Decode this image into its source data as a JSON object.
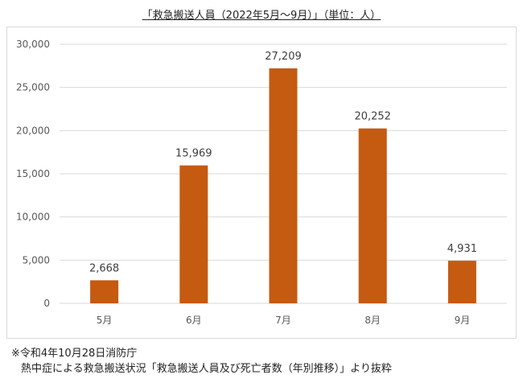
{
  "chart_title": "「救急搬送人員（2022年5月～9月）」（単位：人）",
  "chart_data": {
    "type": "bar",
    "title": "「救急搬送人員（2022年5月～9月）」（単位：人）",
    "categories": [
      "5月",
      "6月",
      "7月",
      "8月",
      "9月"
    ],
    "values": [
      2668,
      15969,
      27209,
      20252,
      4931
    ],
    "value_labels": [
      "2,668",
      "15,969",
      "27,209",
      "20,252",
      "4,931"
    ],
    "ylim": [
      0,
      30000
    ],
    "yticks": [
      0,
      5000,
      10000,
      15000,
      20000,
      25000,
      30000
    ],
    "ytick_labels": [
      "0",
      "5,000",
      "10,000",
      "15,000",
      "20,000",
      "25,000",
      "30,000"
    ],
    "grid": true,
    "legend": "none",
    "bar_color": "#c55a11",
    "grid_color": "#d9d9d9"
  },
  "note": {
    "line1": "※令和4年10月28日消防庁",
    "line2": "熱中症による救急搬送状況「救急搬送人員及び死亡者数（年別推移）」より抜粋"
  }
}
